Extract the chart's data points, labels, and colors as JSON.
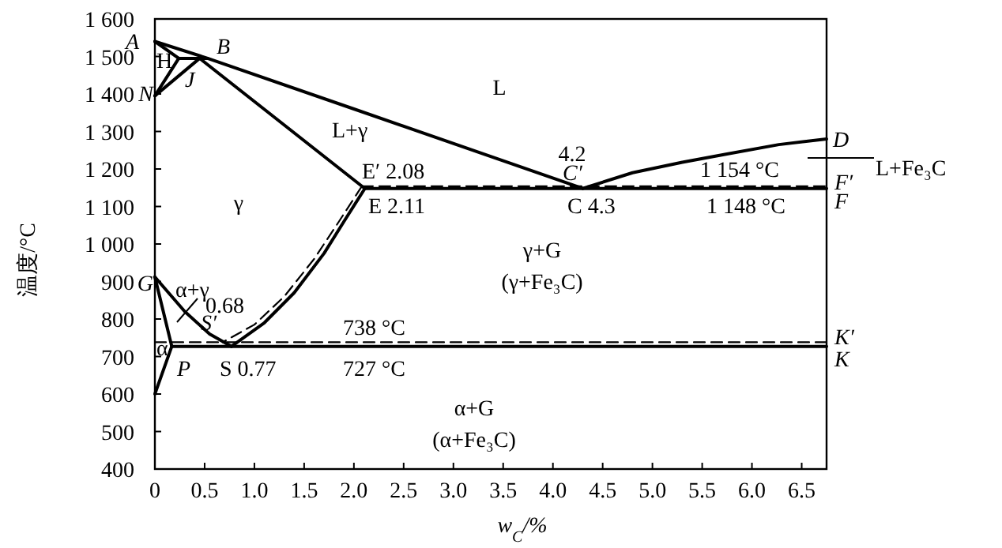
{
  "chart_data": {
    "type": "line",
    "xlabel": "w$_{C}$/%",
    "ylabel": "温度/°C",
    "xlim": [
      0,
      6.75
    ],
    "ylim": [
      400,
      1600
    ],
    "xticks": [
      0,
      0.5,
      {
        "value": 1,
        "label": "1.0"
      },
      1.5,
      {
        "value": 2,
        "label": "2.0"
      },
      2.5,
      {
        "value": 3,
        "label": "3.0"
      },
      3.5,
      {
        "value": 4,
        "label": "4.0"
      },
      4.5,
      {
        "value": 5,
        "label": "5.0"
      },
      5.5,
      {
        "value": 6,
        "label": "6.0"
      },
      6.5
    ],
    "yticks": [
      400,
      500,
      600,
      700,
      800,
      900,
      {
        "value": 1000,
        "label": "1 000"
      },
      {
        "value": 1100,
        "label": "1 100"
      },
      {
        "value": 1200,
        "label": "1 200"
      },
      {
        "value": 1300,
        "label": "1 300"
      },
      {
        "value": 1400,
        "label": "1 400"
      },
      {
        "value": 1500,
        "label": "1 500"
      },
      {
        "value": 1600,
        "label": "1 600"
      }
    ],
    "series": [
      {
        "color": "#000000",
        "line_style": "solid",
        "x": [
          0,
          0.53,
          2.0,
          4.3
        ],
        "values": [
          1540,
          1495,
          1360,
          1148
        ]
      },
      {
        "color": "#000000",
        "line_style": "solid",
        "x": [
          0,
          0.24
        ],
        "values": [
          1540,
          1495
        ]
      },
      {
        "color": "#000000",
        "line_style": "solid",
        "x": [
          0.24,
          0.53
        ],
        "values": [
          1495,
          1495
        ]
      },
      {
        "color": "#000000",
        "line_style": "solid",
        "x": [
          0,
          0.24
        ],
        "values": [
          1395,
          1495
        ]
      },
      {
        "color": "#000000",
        "line_style": "solid",
        "x": [
          0,
          0.45
        ],
        "values": [
          1395,
          1495
        ]
      },
      {
        "color": "#000000",
        "line_style": "solid",
        "x": [
          0.45,
          2.11
        ],
        "values": [
          1495,
          1148
        ]
      },
      {
        "color": "#000000",
        "line_style": "solid",
        "x": [
          4.3,
          4.8,
          5.3,
          5.75,
          6.27,
          6.75
        ],
        "values": [
          1148,
          1190,
          1218,
          1240,
          1265,
          1280
        ]
      },
      {
        "color": "#000000",
        "line_style": "solid",
        "x": [
          2.11,
          6.75
        ],
        "values": [
          1148,
          1148
        ]
      },
      {
        "color": "#000000",
        "line_style": "dashed",
        "x": [
          2.08,
          6.75
        ],
        "values": [
          1154,
          1154
        ]
      },
      {
        "color": "#000000",
        "line_style": "solid",
        "x": [
          2.11,
          1.9,
          1.7,
          1.4,
          1.1,
          0.77
        ],
        "values": [
          1148,
          1060,
          975,
          870,
          790,
          727
        ]
      },
      {
        "color": "#000000",
        "line_style": "dashed",
        "x": [
          2.08,
          1.85,
          1.6,
          1.3,
          1.0,
          0.68
        ],
        "values": [
          1154,
          1060,
          960,
          860,
          785,
          738
        ]
      },
      {
        "color": "#000000",
        "line_style": "solid",
        "x": [
          0,
          0.3,
          0.55,
          0.77
        ],
        "values": [
          912,
          820,
          760,
          727
        ]
      },
      {
        "color": "#000000",
        "line_style": "solid",
        "x": [
          0,
          0.17
        ],
        "values": [
          912,
          727
        ]
      },
      {
        "color": "#000000",
        "line_style": "solid",
        "x": [
          0.17,
          0
        ],
        "values": [
          727,
          600
        ]
      },
      {
        "color": "#000000",
        "line_style": "solid",
        "x": [
          0.17,
          6.75
        ],
        "values": [
          727,
          727
        ]
      },
      {
        "color": "#000000",
        "line_style": "dashed",
        "x": [
          0,
          6.75
        ],
        "values": [
          738,
          738
        ]
      }
    ],
    "annotations": [
      "A",
      "B",
      "H",
      "J",
      "N",
      "L",
      "L+γ",
      "E′ 2.08",
      "γ",
      "E 2.11",
      "4.2",
      "C′",
      "1 154 °C",
      "L+Fe₃C",
      "F′",
      "F",
      "C 4.3",
      "1 148 °C",
      "γ+G",
      "(γ+Fe₃C)",
      "G",
      "α+γ",
      "0.68",
      "S′",
      "738 °C",
      "K′",
      "α",
      "K",
      "P",
      "S 0.77",
      "727 °C",
      "α+G",
      "(α+Fe₃C)",
      "D"
    ]
  }
}
